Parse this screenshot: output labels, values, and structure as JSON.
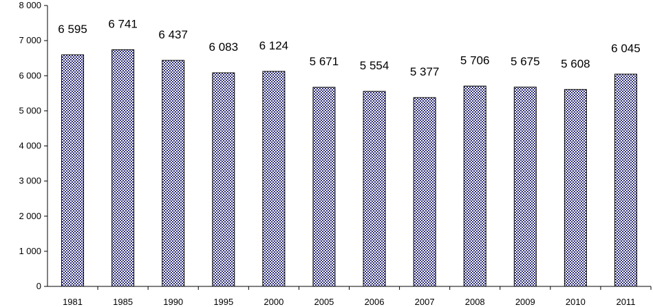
{
  "chart_data": {
    "type": "bar",
    "title": "",
    "xlabel": "",
    "ylabel": "",
    "categories": [
      "1981",
      "1985",
      "1990",
      "1995",
      "2000",
      "2005",
      "2006",
      "2007",
      "2008",
      "2009",
      "2010",
      "2011"
    ],
    "values": [
      6595,
      6741,
      6437,
      6083,
      6124,
      5671,
      5554,
      5377,
      5706,
      5675,
      5608,
      6045
    ],
    "data_labels": [
      "6 595",
      "6 741",
      "6 437",
      "6 083",
      "6 124",
      "5 671",
      "5 554",
      "5 377",
      "5 706",
      "5 675",
      "5 608",
      "6 045"
    ],
    "ylim": [
      0,
      8000
    ],
    "yticks": [
      0,
      1000,
      2000,
      3000,
      4000,
      5000,
      6000,
      7000,
      8000
    ],
    "ytick_labels": [
      "0",
      "1 000",
      "2 000",
      "3 000",
      "4 000",
      "5 000",
      "6 000",
      "7 000",
      "8 000"
    ],
    "grid": false,
    "legend": "none",
    "colors": {
      "bar_fill": "#ffffff",
      "bar_pattern": "#2e2e7a",
      "bar_stroke": "#000000",
      "axis": "#000000"
    }
  }
}
